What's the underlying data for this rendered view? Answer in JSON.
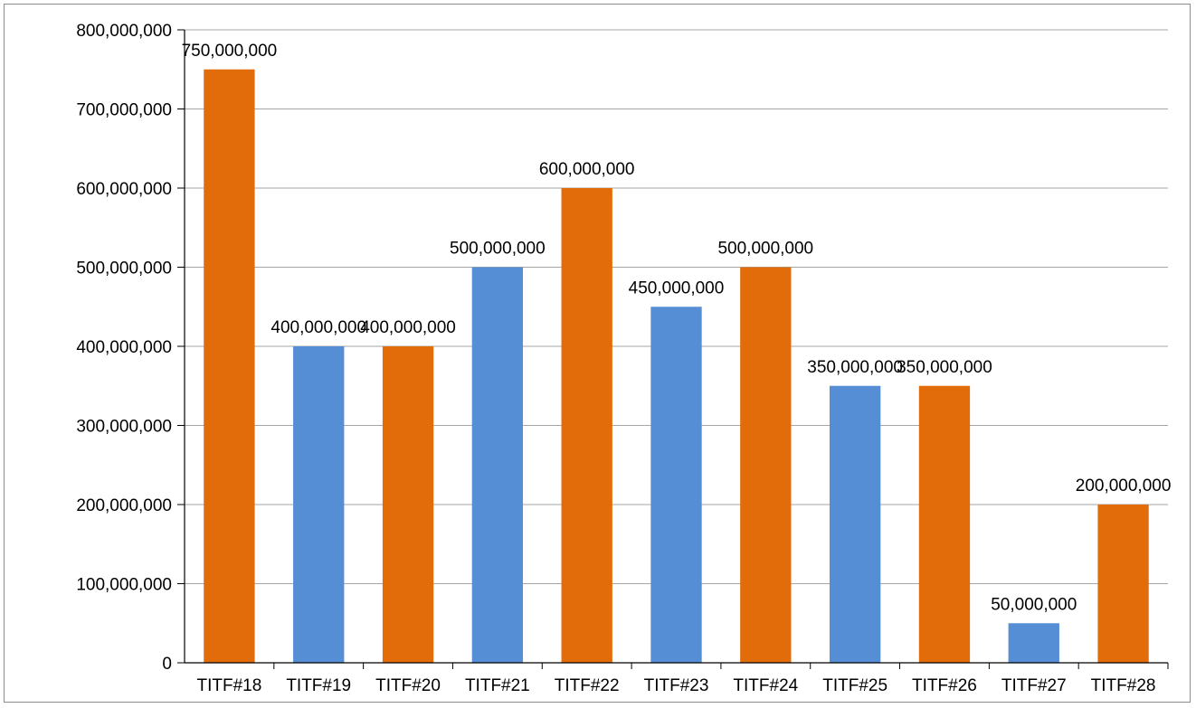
{
  "chart_data": {
    "type": "bar",
    "categories": [
      "TITF#18",
      "TITF#19",
      "TITF#20",
      "TITF#21",
      "TITF#22",
      "TITF#23",
      "TITF#24",
      "TITF#25",
      "TITF#26",
      "TITF#27",
      "TITF#28"
    ],
    "values": [
      750000000,
      400000000,
      400000000,
      500000000,
      600000000,
      450000000,
      500000000,
      350000000,
      350000000,
      50000000,
      200000000
    ],
    "data_labels": [
      "750,000,000",
      "400,000,000",
      "400,000,000",
      "500,000,000",
      "600,000,000",
      "450,000,000",
      "500,000,000",
      "350,000,000",
      "350,000,000",
      "50,000,000",
      "200,000,000"
    ],
    "bar_colors": [
      "#e36c0a",
      "#558ed5",
      "#e36c0a",
      "#558ed5",
      "#e36c0a",
      "#558ed5",
      "#e36c0a",
      "#558ed5",
      "#e36c0a",
      "#558ed5",
      "#e36c0a"
    ],
    "yticks": [
      0,
      100000000,
      200000000,
      300000000,
      400000000,
      500000000,
      600000000,
      700000000,
      800000000
    ],
    "ytick_labels": [
      "0",
      "100,000,000",
      "200,000,000",
      "300,000,000",
      "400,000,000",
      "500,000,000",
      "600,000,000",
      "700,000,000",
      "800,000,000"
    ],
    "ylim": [
      0,
      800000000
    ],
    "title": "",
    "xlabel": "",
    "ylabel": "",
    "grid": true,
    "legend": "none",
    "colors": {
      "orange": "#e36c0a",
      "blue": "#558ed5",
      "grid": "#a6a6a6",
      "axis": "#000000"
    }
  }
}
